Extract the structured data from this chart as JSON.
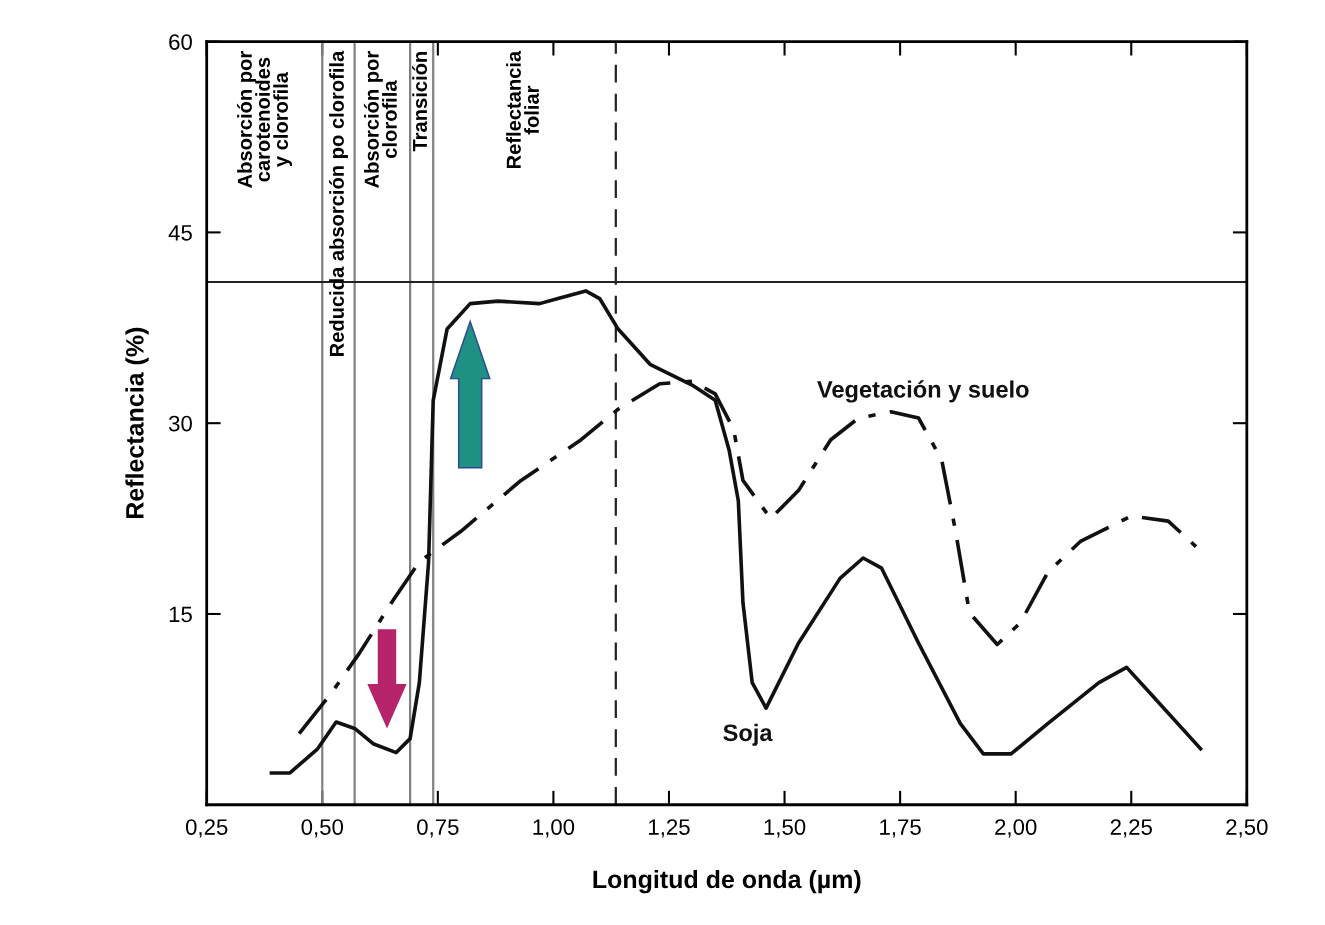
{
  "chart_data": {
    "type": "line",
    "xlabel": "Longitud de onda (µm)",
    "ylabel": "Reflectancia (%)",
    "xlim": [
      0.25,
      2.5
    ],
    "ylim": [
      0,
      60
    ],
    "xticks": [
      {
        "value": 0.25,
        "label": "0,25"
      },
      {
        "value": 0.5,
        "label": "0,50"
      },
      {
        "value": 0.75,
        "label": "0,75"
      },
      {
        "value": 1.0,
        "label": "1,00"
      },
      {
        "value": 1.25,
        "label": "1,25"
      },
      {
        "value": 1.5,
        "label": "1,50"
      },
      {
        "value": 1.75,
        "label": "1,75"
      },
      {
        "value": 2.0,
        "label": "2,00"
      },
      {
        "value": 2.25,
        "label": "2,25"
      },
      {
        "value": 2.5,
        "label": "2,50"
      }
    ],
    "yticks": [
      15,
      30,
      45,
      60
    ],
    "grid": false,
    "legend": false,
    "marker": "none",
    "series": [
      {
        "name": "Soja",
        "color": "#111111",
        "line_style": "solid",
        "x": [
          0.39,
          0.43,
          0.49,
          0.53,
          0.57,
          0.61,
          0.66,
          0.69,
          0.71,
          0.73,
          0.74,
          0.77,
          0.82,
          0.88,
          0.97,
          1.01,
          1.07,
          1.1,
          1.14,
          1.21,
          1.3,
          1.35,
          1.38,
          1.4,
          1.41,
          1.43,
          1.46,
          1.53,
          1.62,
          1.67,
          1.71,
          1.79,
          1.88,
          1.93,
          1.99,
          2.07,
          2.18,
          2.24,
          2.29,
          2.4
        ],
        "values": [
          2.5,
          2.5,
          4.4,
          6.5,
          6.0,
          4.8,
          4.1,
          5.2,
          9.6,
          19.1,
          31.8,
          37.4,
          39.4,
          39.6,
          39.4,
          39.8,
          40.4,
          39.8,
          37.4,
          34.6,
          33.0,
          31.8,
          27.9,
          23.9,
          15.9,
          9.6,
          7.6,
          12.7,
          17.8,
          19.4,
          18.6,
          12.7,
          6.4,
          4.0,
          4.0,
          6.4,
          9.6,
          10.8,
          8.8,
          4.4
        ]
      },
      {
        "name": "Vegetación y suelo",
        "color": "#111111",
        "line_style": "dashdot",
        "x": [
          0.45,
          0.52,
          0.58,
          0.65,
          0.71,
          0.8,
          0.93,
          1.06,
          1.14,
          1.23,
          1.3,
          1.35,
          1.39,
          1.41,
          1.47,
          1.53,
          1.6,
          1.66,
          1.73,
          1.79,
          1.84,
          1.87,
          1.9,
          1.96,
          2.01,
          2.07,
          2.14,
          2.25,
          2.33,
          2.39
        ],
        "values": [
          5.6,
          8.8,
          11.9,
          15.9,
          19.1,
          21.5,
          25.5,
          28.7,
          31.1,
          33.1,
          33.3,
          32.3,
          29.5,
          25.5,
          22.5,
          24.7,
          28.7,
          30.4,
          30.9,
          30.4,
          27.1,
          21.5,
          15.1,
          12.6,
          14.3,
          18.3,
          20.7,
          22.7,
          22.3,
          20.3
        ]
      }
    ],
    "ref_lines": [
      {
        "axis": "x",
        "value": 0.5,
        "color": "#808080",
        "line_style": "solid"
      },
      {
        "axis": "x",
        "value": 0.57,
        "color": "#808080",
        "line_style": "solid"
      },
      {
        "axis": "x",
        "value": 0.69,
        "color": "#808080",
        "line_style": "solid"
      },
      {
        "axis": "x",
        "value": 0.74,
        "color": "#808080",
        "line_style": "solid"
      },
      {
        "axis": "x",
        "value": 1.135,
        "color": "#222222",
        "line_style": "dashed"
      },
      {
        "axis": "y",
        "value": 41.1,
        "color": "#222222",
        "line_style": "solid"
      }
    ],
    "annotations": [
      "Absorción por\ncarotenoides\ny clorofila",
      "Reducida absorción po clorofila",
      "Absorción por\nclorofila",
      "Transición",
      "Reflectancia\nfoliar"
    ]
  }
}
